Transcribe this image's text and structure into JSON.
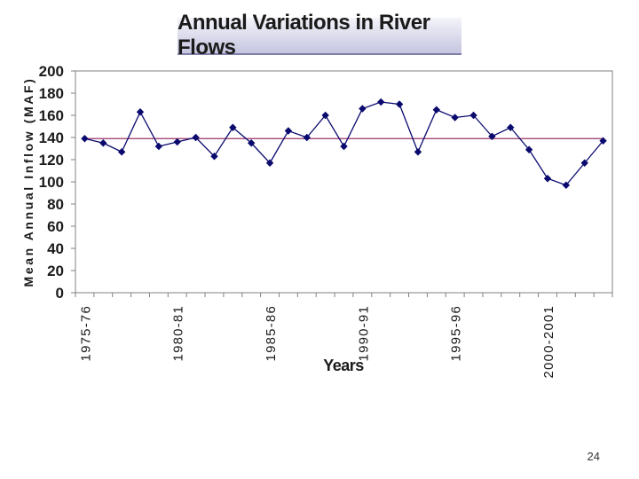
{
  "slide": {
    "page_number": "24"
  },
  "chart_data": {
    "type": "line",
    "title": "Annual Variations in River Flows",
    "xlabel": "Years",
    "ylabel": "Mean Annual Inflow (MAF)",
    "ylim": [
      0,
      200
    ],
    "yticks": [
      0,
      20,
      40,
      60,
      80,
      100,
      120,
      140,
      160,
      180,
      200
    ],
    "grid": false,
    "x_tick_labels": [
      "1975-76",
      "1980-81",
      "1985-86",
      "1990-91",
      "1995-96",
      "2000-2001"
    ],
    "x_tick_label_indices": [
      0,
      5,
      10,
      15,
      20,
      25
    ],
    "categories": [
      "1975-76",
      "1976-77",
      "1977-78",
      "1978-79",
      "1979-80",
      "1980-81",
      "1981-82",
      "1982-83",
      "1983-84",
      "1984-85",
      "1985-86",
      "1986-87",
      "1987-88",
      "1988-89",
      "1989-90",
      "1990-91",
      "1991-92",
      "1992-93",
      "1993-94",
      "1994-95",
      "1995-96",
      "1996-97",
      "1997-98",
      "1998-99",
      "1999-2000",
      "2000-2001",
      "2001-02",
      "2002-03",
      "2003-04"
    ],
    "series": [
      {
        "values": [
          139,
          135,
          127,
          163,
          132,
          136,
          140,
          123,
          149,
          135,
          117,
          146,
          140,
          160,
          132,
          166,
          172,
          170,
          127,
          165,
          158,
          160,
          141,
          149,
          129,
          103,
          97,
          117,
          137
        ]
      }
    ],
    "reference_line": {
      "value": 139
    },
    "colors": {
      "series": "#0a0a6e",
      "reference": "#993366",
      "axis": "#808080"
    }
  }
}
